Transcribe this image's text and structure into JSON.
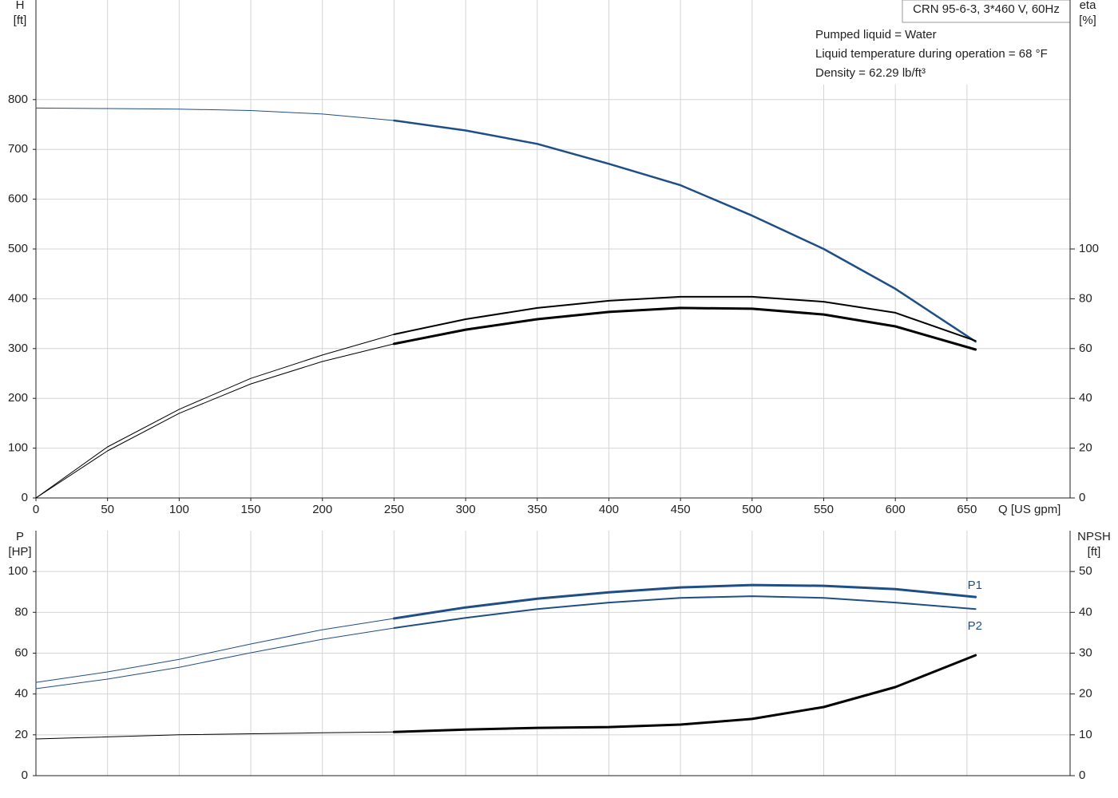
{
  "chart_data": [
    {
      "type": "line",
      "title": "CRN 95-6-3, 3*460 V, 60Hz",
      "annotations": [
        "Pumped liquid = Water",
        "Liquid temperature during operation = 68 °F",
        "Density = 62.29 lb/ft³"
      ],
      "ylabel": [
        "H",
        "[ft]"
      ],
      "y2label": [
        "eta",
        "[%]"
      ],
      "xlabel": "Q [US gpm]",
      "xlim": [
        0,
        722
      ],
      "xticks": [
        0,
        50,
        100,
        150,
        200,
        250,
        300,
        350,
        400,
        450,
        500,
        550,
        600,
        650
      ],
      "ylim": [
        0,
        1000
      ],
      "yticks": [
        0,
        100,
        200,
        300,
        400,
        500,
        600,
        700,
        800
      ],
      "y2lim": [
        0,
        200
      ],
      "y2ticks": [
        0,
        20,
        40,
        60,
        80,
        100
      ],
      "grid": true,
      "series": [
        {
          "color": "#1f4e87",
          "width": 1,
          "x": [
            0,
            50,
            100,
            150,
            200,
            250
          ],
          "values": [
            783,
            782,
            781,
            778,
            771,
            758
          ]
        },
        {
          "color": "#1f4e87",
          "width": 2.5,
          "x": [
            250,
            300,
            350,
            400,
            450,
            500,
            550,
            600,
            656
          ],
          "values": [
            758,
            738,
            711,
            671,
            628,
            567,
            500,
            420,
            314
          ]
        },
        {
          "color": "#000000",
          "width": 1,
          "axis": "y2",
          "x": [
            0,
            50,
            100,
            150,
            200,
            250
          ],
          "values": [
            0,
            20.5,
            35.6,
            48,
            57.4,
            65.7
          ]
        },
        {
          "color": "#000000",
          "width": 2,
          "axis": "y2",
          "x": [
            250,
            300,
            350,
            400,
            450,
            500,
            550,
            600,
            656
          ],
          "values": [
            65.7,
            71.8,
            76.3,
            79.2,
            80.8,
            80.8,
            78.8,
            74.4,
            63.1
          ]
        },
        {
          "color": "#000000",
          "width": 1,
          "axis": "y2",
          "x": [
            0,
            50,
            100,
            150,
            200,
            250
          ],
          "values": [
            0,
            18.9,
            34,
            45.8,
            54.8,
            61.9
          ]
        },
        {
          "color": "#000000",
          "width": 3,
          "axis": "y2",
          "x": [
            250,
            300,
            350,
            400,
            450,
            500,
            550,
            600,
            656
          ],
          "values": [
            61.9,
            67.6,
            71.8,
            74.7,
            76.3,
            76,
            73.7,
            68.9,
            59.6
          ]
        }
      ]
    },
    {
      "type": "line",
      "ylabel": [
        "P",
        "[HP]"
      ],
      "y2label": [
        "NPSH",
        "[ft]"
      ],
      "xlim": [
        0,
        722
      ],
      "ylim": [
        0,
        120
      ],
      "yticks": [
        0,
        20,
        40,
        60,
        80,
        100
      ],
      "y2lim": [
        0,
        60
      ],
      "y2ticks": [
        0,
        10,
        20,
        30,
        40,
        50
      ],
      "grid": true,
      "series": [
        {
          "color": "#1f4e87",
          "width": 1,
          "x": [
            0,
            50,
            100,
            150,
            200,
            250
          ],
          "values": [
            45.7,
            50.8,
            57,
            64.5,
            71.5,
            77
          ]
        },
        {
          "name": "P1",
          "color": "#1f4e87",
          "width": 3,
          "x": [
            250,
            300,
            350,
            400,
            450,
            500,
            550,
            600,
            656
          ],
          "values": [
            77,
            82.4,
            86.7,
            89.8,
            92.2,
            93.4,
            93,
            91.4,
            87.5
          ]
        },
        {
          "color": "#1f4e87",
          "width": 1,
          "x": [
            0,
            50,
            100,
            150,
            200,
            250
          ],
          "values": [
            42.6,
            47.3,
            53.1,
            60.2,
            66.8,
            72.3
          ]
        },
        {
          "name": "P2",
          "color": "#1f4e87",
          "width": 2,
          "x": [
            250,
            300,
            350,
            400,
            450,
            500,
            550,
            600,
            656
          ],
          "values": [
            72.3,
            77.3,
            81.6,
            84.8,
            87.1,
            87.9,
            87.1,
            84.8,
            81.6
          ]
        },
        {
          "color": "#000000",
          "width": 1,
          "axis": "y2",
          "x": [
            0,
            100,
            200,
            250
          ],
          "values": [
            9,
            10,
            10.5,
            10.7
          ]
        },
        {
          "color": "#000000",
          "width": 3,
          "axis": "y2",
          "x": [
            250,
            300,
            350,
            400,
            450,
            500,
            550,
            600,
            656
          ],
          "values": [
            10.7,
            11.3,
            11.7,
            11.9,
            12.5,
            13.9,
            16.8,
            21.7,
            29.5
          ]
        }
      ]
    }
  ]
}
